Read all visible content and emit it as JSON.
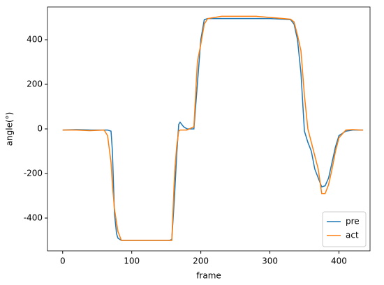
{
  "chart_data": {
    "type": "line",
    "x_label": "frame",
    "y_label": "angle(°)",
    "x": [
      0,
      20,
      40,
      60,
      65,
      70,
      72,
      75,
      78,
      80,
      85,
      90,
      120,
      155,
      158,
      162,
      165,
      168,
      170,
      175,
      180,
      190,
      195,
      200,
      205,
      210,
      230,
      280,
      300,
      320,
      330,
      335,
      340,
      345,
      350,
      355,
      360,
      365,
      370,
      375,
      380,
      385,
      390,
      395,
      400,
      410,
      420,
      430,
      435
    ],
    "series": [
      {
        "name": "pre",
        "color": "#1f77b4",
        "values": [
          -5,
          -3,
          -5,
          -5,
          -5,
          -10,
          -100,
          -380,
          -470,
          -490,
          -500,
          -500,
          -500,
          -500,
          -495,
          -300,
          -120,
          20,
          30,
          10,
          0,
          0,
          200,
          400,
          490,
          495,
          495,
          495,
          495,
          492,
          490,
          470,
          400,
          250,
          -10,
          -60,
          -100,
          -180,
          -220,
          -260,
          -255,
          -220,
          -150,
          -80,
          -30,
          -10,
          -5,
          -5,
          -5
        ]
      },
      {
        "name": "act",
        "color": "#ff7f0e",
        "values": [
          -5,
          -5,
          -8,
          -5,
          -30,
          -150,
          -250,
          -360,
          -420,
          -460,
          -500,
          -500,
          -500,
          -500,
          -500,
          -200,
          -80,
          -10,
          -5,
          -5,
          -5,
          10,
          300,
          380,
          470,
          495,
          505,
          505,
          500,
          495,
          492,
          480,
          420,
          350,
          150,
          0,
          -60,
          -120,
          -180,
          -290,
          -290,
          -250,
          -180,
          -100,
          -40,
          -5,
          -3,
          -5,
          -5
        ]
      }
    ],
    "xlim": [
      -22,
      445
    ],
    "ylim": [
      -547,
      547
    ],
    "xticks": [
      0,
      100,
      200,
      300,
      400
    ],
    "yticks": [
      -400,
      -200,
      0,
      200,
      400
    ],
    "grid": false,
    "legend": "lower right"
  }
}
